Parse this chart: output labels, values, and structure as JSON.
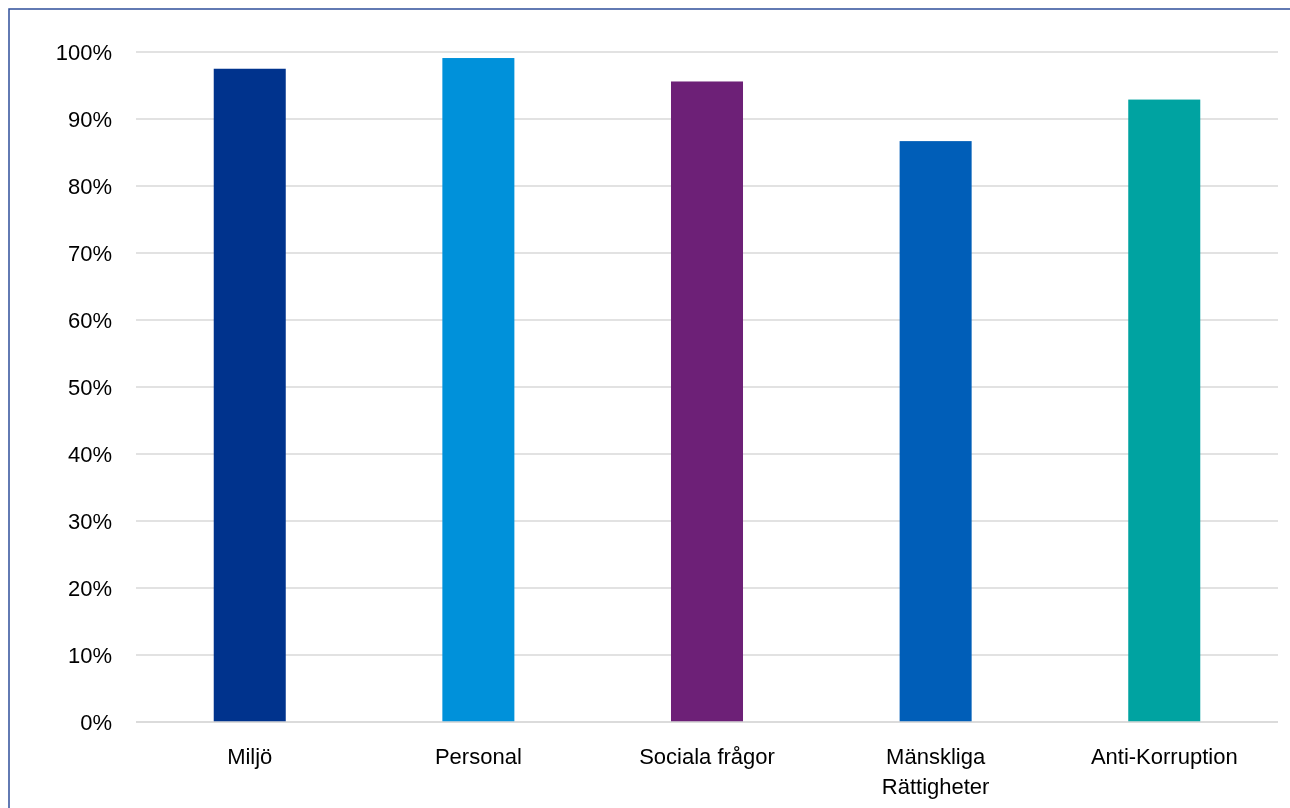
{
  "chart_data": {
    "type": "bar",
    "categories": [
      "Miljö",
      "Personal",
      "Sociala frågor",
      "Mänskliga Rättigheter",
      "Anti-Korruption"
    ],
    "values": [
      97.5,
      99.1,
      95.6,
      86.7,
      92.9
    ],
    "colors": [
      "#00338d",
      "#0091da",
      "#6d2077",
      "#005eb8",
      "#00a3a1"
    ],
    "ylim": [
      0,
      100
    ],
    "yticks": [
      {
        "value": 0,
        "label": "0%"
      },
      {
        "value": 10,
        "label": "10%"
      },
      {
        "value": 20,
        "label": "20%"
      },
      {
        "value": 30,
        "label": "30%"
      },
      {
        "value": 40,
        "label": "40%"
      },
      {
        "value": 50,
        "label": "50%"
      },
      {
        "value": 60,
        "label": "60%"
      },
      {
        "value": 70,
        "label": "70%"
      },
      {
        "value": 80,
        "label": "80%"
      },
      {
        "value": 90,
        "label": "90%"
      },
      {
        "value": 100,
        "label": "100%"
      }
    ],
    "grid": "y"
  }
}
